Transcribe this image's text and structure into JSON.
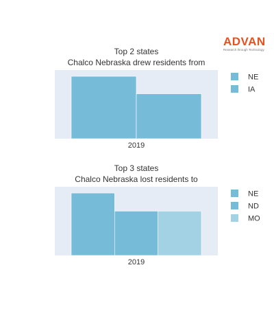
{
  "logo": {
    "name": "ADVAN",
    "tagline": "Research through Technology",
    "color": "#e8501e"
  },
  "chart_data": [
    {
      "type": "bar",
      "title": "Top 2 states",
      "subtitle": "Chalco Nebraska drew residents from",
      "categories": [
        "2019"
      ],
      "series": [
        {
          "name": "NE",
          "values": [
            100
          ],
          "color": "#76bcd8"
        },
        {
          "name": "IA",
          "values": [
            72
          ],
          "color": "#76bcd8"
        }
      ],
      "ylim": [
        0,
        110
      ],
      "background": "#e5ecf6",
      "legend_position": "right"
    },
    {
      "type": "bar",
      "title": "Top 3 states",
      "subtitle": "Chalco Nebraska lost residents to",
      "categories": [
        "2019"
      ],
      "series": [
        {
          "name": "NE",
          "values": [
            100
          ],
          "color": "#76bcd8"
        },
        {
          "name": "ND",
          "values": [
            71
          ],
          "color": "#76bcd8"
        },
        {
          "name": "MO",
          "values": [
            71
          ],
          "color": "#a2d2e4"
        }
      ],
      "ylim": [
        0,
        110
      ],
      "background": "#e5ecf6",
      "legend_position": "right"
    }
  ]
}
